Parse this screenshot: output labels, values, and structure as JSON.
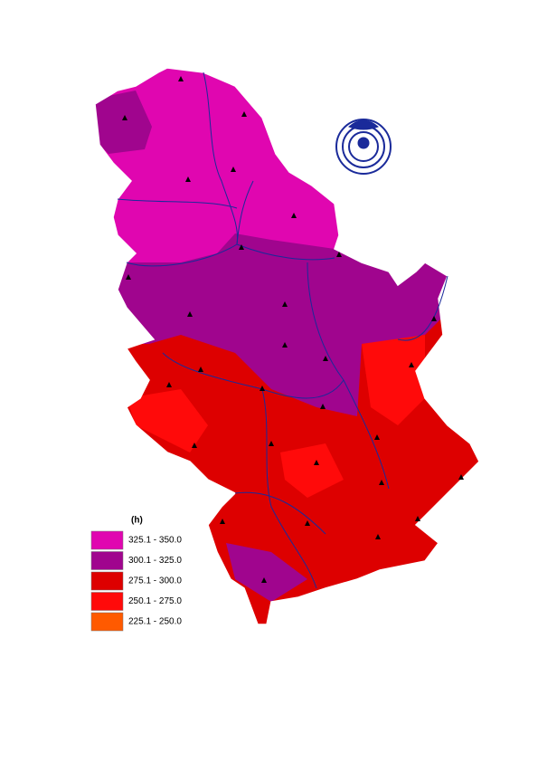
{
  "legend": {
    "title": "(h)",
    "items": [
      {
        "label": "325.1 - 350.0",
        "color": "#e006b0"
      },
      {
        "label": "300.1 - 325.0",
        "color": "#a0058e"
      },
      {
        "label": "275.1 - 300.0",
        "color": "#dd0000"
      },
      {
        "label": "250.1 - 275.0",
        "color": "#ff0a0a"
      },
      {
        "label": "225.1 - 250.0",
        "color": "#ff5a00"
      }
    ]
  }
}
